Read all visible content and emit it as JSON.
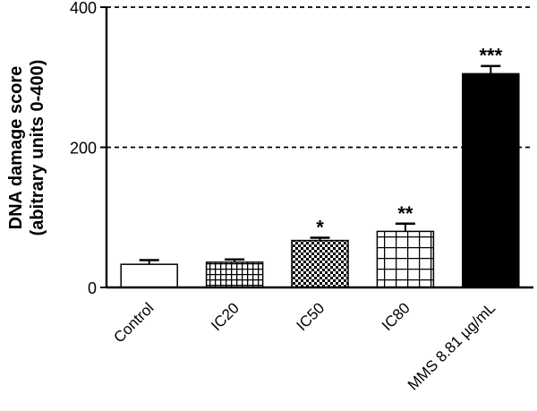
{
  "chart_data": {
    "type": "bar",
    "ylabel": "DNA damage score",
    "ylabel_sub": "(abitrary units 0-400)",
    "categories": [
      "Control",
      "IC20",
      "IC50",
      "IC80",
      "MMS 8.81 µg/mL"
    ],
    "values": [
      33,
      36,
      67,
      80,
      305
    ],
    "errors": [
      6,
      4,
      4,
      11,
      11
    ],
    "significance": [
      "",
      "",
      "*",
      "**",
      "***"
    ],
    "fills": [
      "white",
      "fine-grid",
      "checker",
      "large-grid",
      "black"
    ],
    "ylim": [
      0,
      400
    ],
    "yticks": [
      0,
      200,
      400
    ],
    "reference_lines": [
      200,
      400
    ],
    "grid": false,
    "legend": "none"
  }
}
